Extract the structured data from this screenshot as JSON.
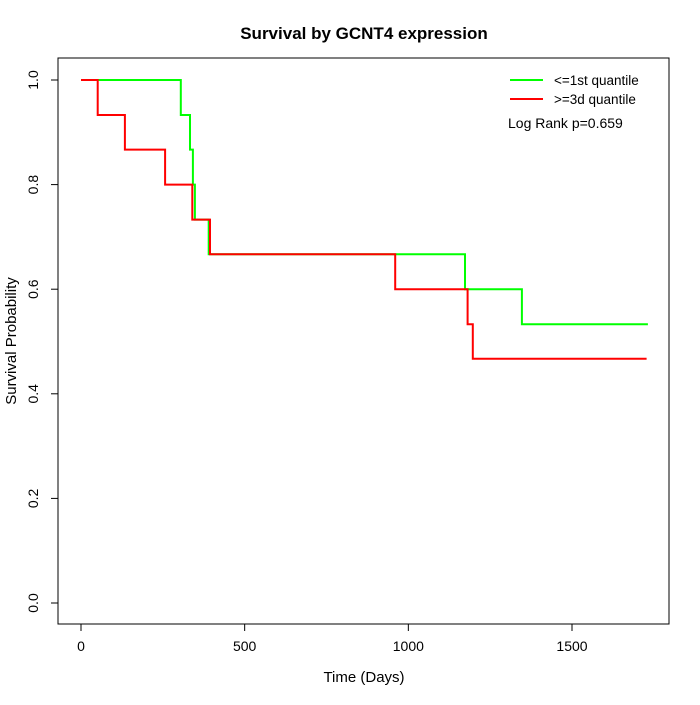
{
  "page": {
    "background": "#ffffff",
    "axis_color": "#000000",
    "text_color": "#000000"
  },
  "chart_data": {
    "type": "line",
    "subtype": "kaplan-meier-step",
    "title": "Survival by GCNT4 expression",
    "xlabel": "Time (Days)",
    "ylabel": "Survival Probability",
    "xlim": [
      0,
      1730
    ],
    "ylim": [
      0.0,
      1.0
    ],
    "grid": false,
    "legend_position": "topright",
    "annotation": "Log Rank p=0.659",
    "x_ticks": [
      0,
      500,
      1000,
      1500
    ],
    "x_tick_labels": [
      "0",
      "500",
      "1000",
      "1500"
    ],
    "y_ticks": [
      0.0,
      0.2,
      0.4,
      0.6,
      0.8,
      1.0
    ],
    "y_tick_labels": [
      "0.0",
      "0.2",
      "0.4",
      "0.6",
      "0.8",
      "1.0"
    ],
    "series": [
      {
        "name": "<=1st quantile",
        "color": "#00ff00",
        "points": [
          [
            0,
            1.0
          ],
          [
            305,
            1.0
          ],
          [
            305,
            0.933
          ],
          [
            333,
            0.933
          ],
          [
            333,
            0.867
          ],
          [
            342,
            0.867
          ],
          [
            342,
            0.8
          ],
          [
            348,
            0.8
          ],
          [
            348,
            0.733
          ],
          [
            390,
            0.733
          ],
          [
            390,
            0.667
          ],
          [
            1173,
            0.667
          ],
          [
            1173,
            0.6
          ],
          [
            1347,
            0.6
          ],
          [
            1347,
            0.533
          ],
          [
            1732,
            0.533
          ]
        ]
      },
      {
        "name": ">=3d quantile",
        "color": "#ff0000",
        "points": [
          [
            0,
            1.0
          ],
          [
            51,
            1.0
          ],
          [
            51,
            0.933
          ],
          [
            134,
            0.933
          ],
          [
            134,
            0.867
          ],
          [
            257,
            0.867
          ],
          [
            257,
            0.8
          ],
          [
            340,
            0.8
          ],
          [
            340,
            0.733
          ],
          [
            394,
            0.733
          ],
          [
            394,
            0.667
          ],
          [
            960,
            0.667
          ],
          [
            960,
            0.6
          ],
          [
            1181,
            0.6
          ],
          [
            1181,
            0.533
          ],
          [
            1197,
            0.533
          ],
          [
            1197,
            0.467
          ],
          [
            1728,
            0.467
          ]
        ]
      }
    ]
  }
}
